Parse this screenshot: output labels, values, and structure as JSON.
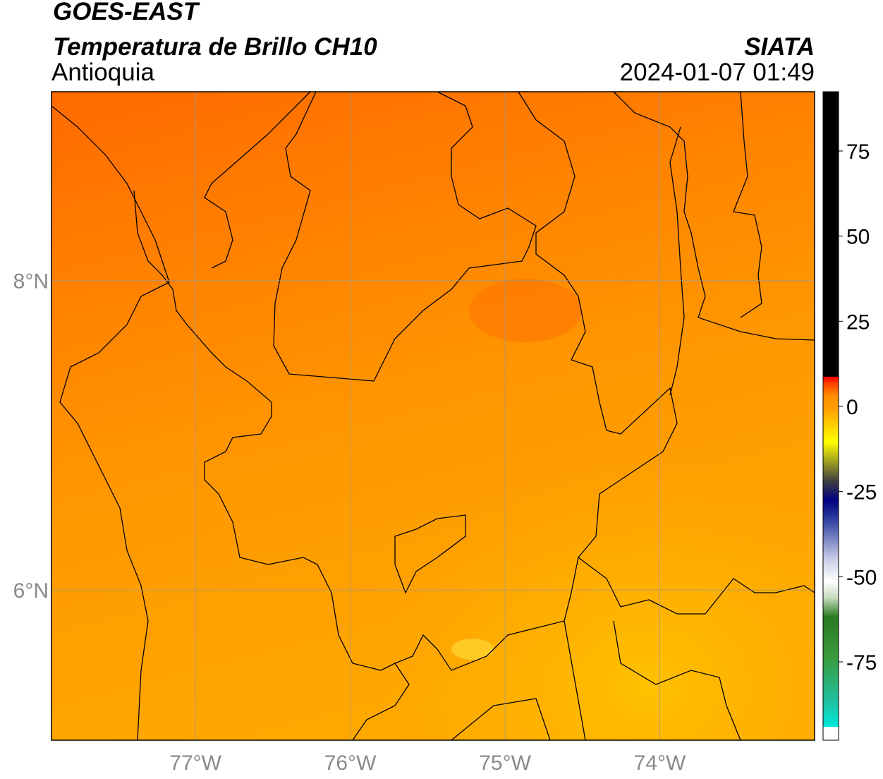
{
  "header": {
    "title": "GOES-EAST",
    "subtitle": "Temperatura de Brillo CH10",
    "region": "Antioquia",
    "source": "SIATA",
    "datetime": "2024-01-07 01:49"
  },
  "map": {
    "xlim": [
      -77.93,
      -73.0
    ],
    "ylim": [
      5.03,
      9.22
    ],
    "xticks": [
      {
        "value": -77,
        "label": "77°W"
      },
      {
        "value": -76,
        "label": "76°W"
      },
      {
        "value": -75,
        "label": "75°W"
      },
      {
        "value": -74,
        "label": "74°W"
      }
    ],
    "yticks": [
      {
        "value": 8,
        "label": "8°N"
      },
      {
        "value": 6,
        "label": "6°N"
      }
    ],
    "grid": true
  },
  "colorbar": {
    "lim": [
      -98,
      92.4
    ],
    "ticks": [
      75,
      50,
      25,
      0,
      -25,
      -50,
      -75
    ]
  }
}
